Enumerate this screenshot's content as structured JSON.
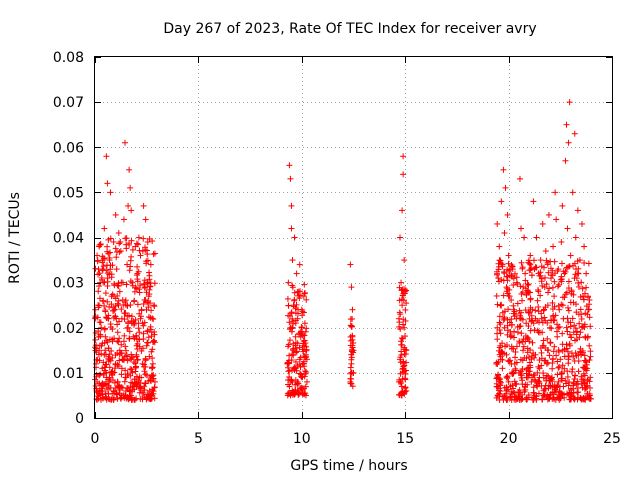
{
  "chart_data": {
    "type": "scatter",
    "title": "Day 267 of 2023, Rate Of TEC Index for receiver avry",
    "xlabel": "GPS time / hours",
    "ylabel": "ROTI / TECUs",
    "xlim": [
      0,
      25
    ],
    "ylim": [
      0,
      0.08
    ],
    "xticks": [
      0,
      5,
      10,
      15,
      20,
      25
    ],
    "xtick_labels": [
      "0",
      "5",
      "10",
      "15",
      "20",
      "25"
    ],
    "yticks": [
      0,
      0.01,
      0.02,
      0.03,
      0.04,
      0.05,
      0.06,
      0.07,
      0.08
    ],
    "ytick_labels": [
      "0",
      "0.01",
      "0.02",
      "0.03",
      "0.04",
      "0.05",
      "0.06",
      "0.07",
      "0.08"
    ],
    "grid": true,
    "marker": "+",
    "marker_color": "#ff0000",
    "series": [
      {
        "name": "ROTI",
        "points": [
          [
            0.05,
            0.012
          ],
          [
            0.1,
            0.036
          ],
          [
            0.1,
            0.008
          ],
          [
            0.15,
            0.025
          ],
          [
            0.2,
            0.038
          ],
          [
            0.2,
            0.015
          ],
          [
            0.25,
            0.005
          ],
          [
            0.25,
            0.03
          ],
          [
            0.3,
            0.02
          ],
          [
            0.35,
            0.011
          ],
          [
            0.35,
            0.033
          ],
          [
            0.4,
            0.026
          ],
          [
            0.45,
            0.014
          ],
          [
            0.45,
            0.042
          ],
          [
            0.5,
            0.018
          ],
          [
            0.55,
            0.009
          ],
          [
            0.55,
            0.058
          ],
          [
            0.6,
            0.052
          ],
          [
            0.6,
            0.031
          ],
          [
            0.65,
            0.022
          ],
          [
            0.7,
            0.013
          ],
          [
            0.7,
            0.035
          ],
          [
            0.75,
            0.05
          ],
          [
            0.8,
            0.027
          ],
          [
            0.8,
            0.01
          ],
          [
            0.85,
            0.017
          ],
          [
            0.9,
            0.039
          ],
          [
            0.9,
            0.006
          ],
          [
            0.95,
            0.024
          ],
          [
            1.0,
            0.045
          ],
          [
            1.0,
            0.012
          ],
          [
            1.05,
            0.033
          ],
          [
            1.1,
            0.019
          ],
          [
            1.1,
            0.008
          ],
          [
            1.15,
            0.041
          ],
          [
            1.2,
            0.028
          ],
          [
            1.2,
            0.015
          ],
          [
            1.25,
            0.037
          ],
          [
            1.3,
            0.022
          ],
          [
            1.3,
            0.011
          ],
          [
            1.35,
            0.03
          ],
          [
            1.4,
            0.044
          ],
          [
            1.4,
            0.017
          ],
          [
            1.45,
            0.061
          ],
          [
            1.5,
            0.025
          ],
          [
            1.5,
            0.009
          ],
          [
            1.55,
            0.034
          ],
          [
            1.6,
            0.047
          ],
          [
            1.6,
            0.02
          ],
          [
            1.65,
            0.055
          ],
          [
            1.7,
            0.051
          ],
          [
            1.7,
            0.013
          ],
          [
            1.75,
            0.046
          ],
          [
            1.8,
            0.03
          ],
          [
            1.85,
            0.018
          ],
          [
            1.85,
            0.007
          ],
          [
            1.9,
            0.026
          ],
          [
            1.95,
            0.038
          ],
          [
            2.0,
            0.014
          ],
          [
            2.05,
            0.032
          ],
          [
            2.1,
            0.021
          ],
          [
            2.15,
            0.009
          ],
          [
            2.2,
            0.036
          ],
          [
            2.25,
            0.024
          ],
          [
            2.3,
            0.012
          ],
          [
            2.35,
            0.047
          ],
          [
            2.4,
            0.029
          ],
          [
            2.45,
            0.044
          ],
          [
            2.5,
            0.016
          ],
          [
            2.55,
            0.039
          ],
          [
            2.6,
            0.027
          ],
          [
            2.65,
            0.006
          ],
          [
            2.7,
            0.034
          ],
          [
            2.75,
            0.019
          ],
          [
            2.8,
            0.012
          ],
          [
            2.85,
            0.025
          ],
          [
            2.9,
            0.008
          ],
          [
            9.3,
            0.012
          ],
          [
            9.35,
            0.03
          ],
          [
            9.4,
            0.056
          ],
          [
            9.45,
            0.053
          ],
          [
            9.45,
            0.02
          ],
          [
            9.5,
            0.047
          ],
          [
            9.5,
            0.042
          ],
          [
            9.55,
            0.035
          ],
          [
            9.55,
            0.008
          ],
          [
            9.6,
            0.025
          ],
          [
            9.6,
            0.015
          ],
          [
            9.65,
            0.04
          ],
          [
            9.7,
            0.018
          ],
          [
            9.7,
            0.011
          ],
          [
            9.75,
            0.032
          ],
          [
            9.8,
            0.022
          ],
          [
            9.8,
            0.006
          ],
          [
            9.85,
            0.028
          ],
          [
            9.9,
            0.013
          ],
          [
            9.9,
            0.034
          ],
          [
            9.95,
            0.019
          ],
          [
            10.0,
            0.024
          ],
          [
            10.0,
            0.009
          ],
          [
            10.05,
            0.016
          ],
          [
            10.1,
            0.027
          ],
          [
            10.1,
            0.012
          ],
          [
            10.15,
            0.021
          ],
          [
            10.2,
            0.014
          ],
          [
            10.25,
            0.008
          ],
          [
            12.35,
            0.008
          ],
          [
            12.35,
            0.034
          ],
          [
            12.4,
            0.029
          ],
          [
            12.4,
            0.012
          ],
          [
            12.45,
            0.018
          ],
          [
            12.45,
            0.024
          ],
          [
            12.5,
            0.01
          ],
          [
            12.5,
            0.015
          ],
          [
            14.7,
            0.008
          ],
          [
            14.7,
            0.022
          ],
          [
            14.75,
            0.04
          ],
          [
            14.75,
            0.013
          ],
          [
            14.8,
            0.03
          ],
          [
            14.8,
            0.017
          ],
          [
            14.85,
            0.046
          ],
          [
            14.85,
            0.025
          ],
          [
            14.9,
            0.058
          ],
          [
            14.9,
            0.054
          ],
          [
            14.9,
            0.011
          ],
          [
            14.95,
            0.035
          ],
          [
            14.95,
            0.02
          ],
          [
            15.0,
            0.028
          ],
          [
            15.05,
            0.015
          ],
          [
            15.05,
            0.006
          ],
          [
            19.4,
            0.012
          ],
          [
            19.45,
            0.043
          ],
          [
            19.45,
            0.02
          ],
          [
            19.5,
            0.031
          ],
          [
            19.5,
            0.009
          ],
          [
            19.55,
            0.038
          ],
          [
            19.6,
            0.016
          ],
          [
            19.6,
            0.025
          ],
          [
            19.65,
            0.048
          ],
          [
            19.7,
            0.034
          ],
          [
            19.7,
            0.011
          ],
          [
            19.75,
            0.055
          ],
          [
            19.8,
            0.041
          ],
          [
            19.8,
            0.022
          ],
          [
            19.85,
            0.051
          ],
          [
            19.9,
            0.029
          ],
          [
            19.9,
            0.014
          ],
          [
            19.95,
            0.045
          ],
          [
            20.0,
            0.036
          ],
          [
            20.0,
            0.008
          ],
          [
            20.05,
            0.027
          ],
          [
            20.1,
            0.018
          ],
          [
            20.15,
            0.004
          ],
          [
            20.2,
            0.033
          ],
          [
            20.25,
            0.024
          ],
          [
            20.3,
            0.012
          ],
          [
            20.35,
            0.004
          ],
          [
            20.4,
            0.03
          ],
          [
            20.45,
            0.019
          ],
          [
            20.5,
            0.01
          ],
          [
            20.55,
            0.053
          ],
          [
            20.6,
            0.042
          ],
          [
            20.65,
            0.026
          ],
          [
            20.7,
            0.015
          ],
          [
            20.75,
            0.04
          ],
          [
            20.8,
            0.032
          ],
          [
            20.85,
            0.021
          ],
          [
            20.9,
            0.011
          ],
          [
            20.95,
            0.028
          ],
          [
            21.0,
            0.017
          ],
          [
            21.05,
            0.036
          ],
          [
            21.1,
            0.008
          ],
          [
            21.15,
            0.024
          ],
          [
            21.2,
            0.048
          ],
          [
            21.25,
            0.033
          ],
          [
            21.3,
            0.014
          ],
          [
            21.35,
            0.04
          ],
          [
            21.4,
            0.026
          ],
          [
            21.45,
            0.019
          ],
          [
            21.5,
            0.011
          ],
          [
            21.55,
            0.035
          ],
          [
            21.6,
            0.022
          ],
          [
            21.65,
            0.043
          ],
          [
            21.7,
            0.016
          ],
          [
            21.75,
            0.029
          ],
          [
            21.8,
            0.037
          ],
          [
            21.85,
            0.012
          ],
          [
            21.9,
            0.025
          ],
          [
            21.95,
            0.045
          ],
          [
            22.0,
            0.02
          ],
          [
            22.05,
            0.031
          ],
          [
            22.1,
            0.009
          ],
          [
            22.15,
            0.038
          ],
          [
            22.2,
            0.027
          ],
          [
            22.25,
            0.05
          ],
          [
            22.3,
            0.044
          ],
          [
            22.35,
            0.018
          ],
          [
            22.4,
            0.033
          ],
          [
            22.45,
            0.024
          ],
          [
            22.5,
            0.013
          ],
          [
            22.55,
            0.039
          ],
          [
            22.6,
            0.047
          ],
          [
            22.65,
            0.022
          ],
          [
            22.7,
            0.032
          ],
          [
            22.75,
            0.057
          ],
          [
            22.8,
            0.065
          ],
          [
            22.85,
            0.042
          ],
          [
            22.9,
            0.061
          ],
          [
            22.95,
            0.07
          ],
          [
            23.0,
            0.036
          ],
          [
            23.05,
            0.028
          ],
          [
            23.1,
            0.05
          ],
          [
            23.15,
            0.019
          ],
          [
            23.2,
            0.063
          ],
          [
            23.25,
            0.04
          ],
          [
            23.3,
            0.031
          ],
          [
            23.35,
            0.046
          ],
          [
            23.4,
            0.023
          ],
          [
            23.45,
            0.035
          ],
          [
            23.5,
            0.014
          ],
          [
            23.55,
            0.043
          ],
          [
            23.6,
            0.027
          ],
          [
            23.65,
            0.038
          ],
          [
            23.7,
            0.018
          ],
          [
            23.75,
            0.032
          ],
          [
            23.8,
            0.011
          ],
          [
            23.85,
            0.024
          ],
          [
            23.9,
            0.016
          ],
          [
            23.95,
            0.009
          ]
        ],
        "bands": [
          {
            "x_start": 0.0,
            "x_end": 2.9,
            "y_low": 0.004,
            "y_high": 0.04,
            "count": 520
          },
          {
            "x_start": 9.3,
            "x_end": 10.25,
            "y_low": 0.005,
            "y_high": 0.03,
            "count": 160
          },
          {
            "x_start": 12.35,
            "x_end": 12.5,
            "y_low": 0.007,
            "y_high": 0.022,
            "count": 30
          },
          {
            "x_start": 14.7,
            "x_end": 15.05,
            "y_low": 0.005,
            "y_high": 0.03,
            "count": 70
          },
          {
            "x_start": 19.4,
            "x_end": 24.0,
            "y_low": 0.004,
            "y_high": 0.035,
            "count": 700
          }
        ]
      }
    ]
  }
}
